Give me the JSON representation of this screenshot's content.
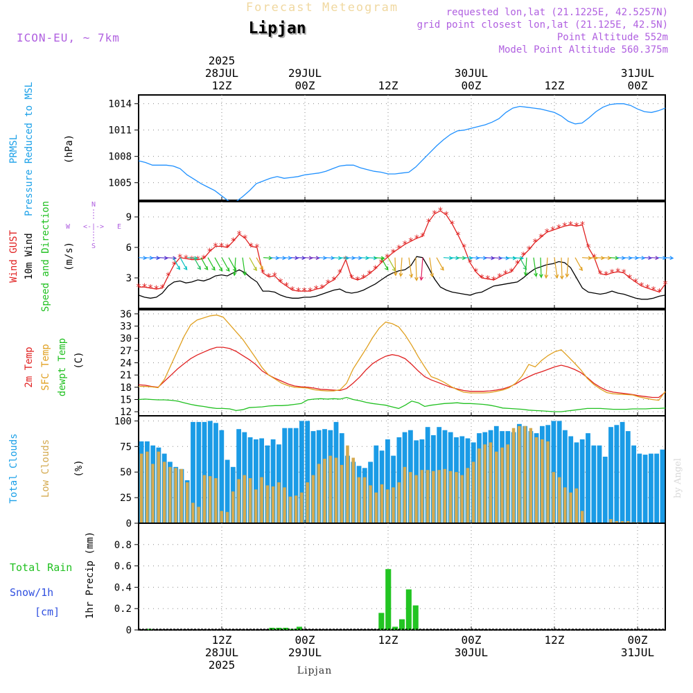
{
  "header": {
    "banner": "Forecast Meteogram",
    "location": "Lipjan",
    "model": "ICON-EU, ~ 7km",
    "requested": "requested lon,lat (21.1225E, 42.5257N)",
    "grid_point": "grid point closest lon,lat (21.125E, 42.5N)",
    "altitude": "Point Altitude 552m",
    "model_altitude": "Model Point Altitude 560.375m"
  },
  "time_axis": {
    "top_ticks": [
      {
        "hour": 12,
        "lines": [
          "2025",
          "28JUL",
          "12Z"
        ]
      },
      {
        "hour": 24,
        "lines": [
          "29JUL",
          "00Z"
        ]
      },
      {
        "hour": 36,
        "lines": [
          "12Z"
        ]
      },
      {
        "hour": 48,
        "lines": [
          "30JUL",
          "00Z"
        ]
      },
      {
        "hour": 60,
        "lines": [
          "12Z"
        ]
      },
      {
        "hour": 72,
        "lines": [
          "31JUL",
          "00Z"
        ]
      }
    ],
    "bottom_ticks": [
      {
        "hour": 12,
        "lines": [
          "12Z",
          "28JUL",
          "2025"
        ]
      },
      {
        "hour": 24,
        "lines": [
          "00Z",
          "29JUL"
        ]
      },
      {
        "hour": 36,
        "lines": [
          "12Z"
        ]
      },
      {
        "hour": 48,
        "lines": [
          "00Z",
          "30JUL"
        ]
      },
      {
        "hour": 60,
        "lines": [
          "12Z"
        ]
      },
      {
        "hour": 72,
        "lines": [
          "00Z",
          "31JUL"
        ]
      }
    ],
    "footer_label": "Lipjan",
    "range_hours": [
      0,
      76
    ]
  },
  "credit": "by Angel",
  "chart_data": [
    {
      "type": "line",
      "panel": "pressure",
      "ylabels": [
        "PRMSL",
        "Pressure Reduced to MSL"
      ],
      "unit": "(hPa)",
      "ylim": [
        1003,
        1015
      ],
      "yticks": [
        1005,
        1008,
        1011,
        1014
      ],
      "x_hours_start": 0,
      "x_step": 1,
      "series": [
        {
          "name": "PRMSL",
          "color": "#1e90ff",
          "values": [
            1007.5,
            1007.3,
            1007.0,
            1007.0,
            1007.0,
            1006.9,
            1006.6,
            1005.9,
            1005.4,
            1004.9,
            1004.5,
            1004.1,
            1003.5,
            1002.9,
            1002.8,
            1003.4,
            1004.1,
            1004.9,
            1005.2,
            1005.5,
            1005.7,
            1005.5,
            1005.6,
            1005.7,
            1005.9,
            1006.0,
            1006.1,
            1006.3,
            1006.6,
            1006.9,
            1007.0,
            1007.0,
            1006.7,
            1006.5,
            1006.3,
            1006.2,
            1006.0,
            1006.0,
            1006.1,
            1006.2,
            1006.8,
            1007.6,
            1008.4,
            1009.2,
            1009.9,
            1010.5,
            1010.9,
            1011.0,
            1011.2,
            1011.4,
            1011.6,
            1011.9,
            1012.3,
            1013.0,
            1013.5,
            1013.7,
            1013.6,
            1013.5,
            1013.4,
            1013.2,
            1013.0,
            1012.6,
            1012.0,
            1011.7,
            1011.8,
            1012.4,
            1013.1,
            1013.6,
            1013.9,
            1014.0,
            1014.0,
            1013.8,
            1013.4,
            1013.1,
            1013.0,
            1013.2,
            1013.5
          ]
        }
      ]
    },
    {
      "type": "line",
      "panel": "wind",
      "ylabels": [
        "Wind GUST",
        "10m Wind",
        "Speed and Direction"
      ],
      "unit": "(m/s)",
      "compass": {
        "n": "N",
        "s": "S",
        "w": "W",
        "e": "E",
        "arrows": "<-|->"
      },
      "ylim": [
        0,
        10.5
      ],
      "yticks": [
        3,
        6,
        9
      ],
      "x_hours_start": 0,
      "x_step": 1,
      "series": [
        {
          "name": "Wind GUST",
          "color": "#e02020",
          "marker": "*",
          "values": [
            2.1,
            2.1,
            2.0,
            1.9,
            2.0,
            3.2,
            4.3,
            5.0,
            4.9,
            4.8,
            4.8,
            4.9,
            5.6,
            6.1,
            6.1,
            6.0,
            6.6,
            7.3,
            6.9,
            6.1,
            6.0,
            3.5,
            3.1,
            3.2,
            2.6,
            2.2,
            1.8,
            1.7,
            1.7,
            1.7,
            1.9,
            2.0,
            2.5,
            2.8,
            3.5,
            4.8,
            3.0,
            2.8,
            3.0,
            3.4,
            3.9,
            4.5,
            5.0,
            5.5,
            5.9,
            6.3,
            6.6,
            6.9,
            7.1,
            8.5,
            9.3,
            9.6,
            9.2,
            8.3,
            7.2,
            6.0,
            4.5,
            3.6,
            3.0,
            2.9,
            2.8,
            3.1,
            3.4,
            3.6,
            4.4,
            5.2,
            5.8,
            6.5,
            7.0,
            7.5,
            7.7,
            7.9,
            8.1,
            8.2,
            8.1,
            8.2,
            6.0,
            5.0,
            3.4,
            3.3,
            3.5,
            3.6,
            3.5,
            3.0,
            2.6,
            2.2,
            2.0,
            1.8,
            1.6,
            2.4
          ]
        },
        {
          "name": "10m Wind",
          "color": "#000000",
          "values": [
            1.3,
            1.1,
            1.0,
            1.1,
            1.5,
            2.2,
            2.6,
            2.7,
            2.5,
            2.6,
            2.8,
            2.7,
            2.9,
            3.2,
            3.3,
            3.2,
            3.5,
            3.8,
            3.5,
            3.0,
            2.6,
            1.7,
            1.7,
            1.6,
            1.3,
            1.1,
            1.0,
            1.0,
            1.1,
            1.1,
            1.2,
            1.4,
            1.6,
            1.8,
            1.9,
            1.6,
            1.5,
            1.6,
            1.8,
            2.1,
            2.4,
            2.8,
            3.2,
            3.5,
            3.7,
            3.8,
            4.2,
            5.1,
            5.0,
            4.0,
            2.9,
            2.1,
            1.8,
            1.6,
            1.5,
            1.4,
            1.3,
            1.5,
            1.6,
            1.9,
            2.2,
            2.3,
            2.4,
            2.5,
            2.6,
            3.0,
            3.5,
            3.9,
            4.1,
            4.3,
            4.4,
            4.6,
            4.5,
            4.0,
            3.0,
            2.0,
            1.6,
            1.5,
            1.4,
            1.5,
            1.7,
            1.5,
            1.4,
            1.2,
            1.0,
            0.9,
            0.9,
            1.0,
            1.2,
            1.3
          ]
        },
        {
          "name": "Speed and Direction",
          "color": "#20c020",
          "arrow_colors": [
            "#1e90ff",
            "#1e90ff",
            "#3040e0",
            "#5030d0",
            "#7030c0",
            "#00c0c0",
            "#00c0c0",
            "#20c0a0",
            "#20c060",
            "#20c020",
            "#20c020",
            "#20c020",
            "#20c020",
            "#20c020",
            "#20c020",
            "#20c020",
            "#b0c020",
            "#e0a020",
            "#20c020",
            "#1e90ff",
            "#1e90ff",
            "#1e90ff",
            "#5030d0",
            "#5030d0",
            "#7030c0",
            "#7030c0",
            "#1e90ff",
            "#1e90ff",
            "#00c0c0",
            "#00c0c0",
            "#1e90ff",
            "#1e90ff",
            "#00c0c0",
            "#00c0c0",
            "#20c020",
            "#20c020",
            "#a0c020",
            "#e0a020",
            "#e0a020",
            "#e0a020",
            "#e0a020",
            "#e02060",
            "#e0a020",
            "#e0a020",
            "#00c0c0",
            "#00c0c0",
            "#20c060",
            "#00c0c0",
            "#1e90ff",
            "#1e90ff",
            "#5030d0",
            "#7030c0",
            "#1e90ff",
            "#00c0c0",
            "#00c0c0",
            "#20c060",
            "#20c020",
            "#20c020",
            "#20c020",
            "#e0a020",
            "#e0a020",
            "#e0a020",
            "#e0a020",
            "#e0a020",
            "#e0a020",
            "#e0a020",
            "#e0a020",
            "#e0a020",
            "#20c020",
            "#1e90ff",
            "#1e90ff",
            "#1e90ff",
            "#1e90ff",
            "#5030d0",
            "#7030c0",
            "#1e90ff",
            "#1e90ff"
          ]
        }
      ]
    },
    {
      "type": "line",
      "panel": "temperature",
      "ylabels": [
        "2m Temp",
        "SFC Temp",
        "dewpt Temp"
      ],
      "unit": "(C)",
      "ylim": [
        11,
        37
      ],
      "yticks": [
        12,
        15,
        18,
        21,
        24,
        27,
        30,
        33,
        36
      ],
      "x_hours_start": 0,
      "x_step": 1,
      "series": [
        {
          "name": "2m Temp",
          "color": "#e02020",
          "values": [
            18.6,
            18.5,
            18.2,
            18.0,
            19.5,
            21.0,
            22.5,
            23.8,
            25.0,
            25.9,
            26.6,
            27.3,
            27.8,
            27.8,
            27.5,
            26.8,
            25.8,
            24.8,
            23.6,
            22.0,
            21.0,
            20.2,
            19.5,
            18.8,
            18.3,
            18.1,
            18.0,
            17.8,
            17.5,
            17.4,
            17.3,
            17.2,
            17.7,
            19.0,
            20.5,
            22.3,
            23.8,
            24.8,
            25.6,
            26.0,
            25.7,
            25.0,
            23.6,
            22.0,
            20.6,
            19.8,
            19.2,
            18.6,
            18.0,
            17.6,
            17.2,
            17.0,
            17.0,
            17.0,
            17.1,
            17.3,
            17.6,
            18.1,
            18.8,
            19.8,
            20.6,
            21.3,
            21.8,
            22.4,
            23.0,
            23.4,
            23.0,
            22.4,
            21.6,
            20.4,
            19.0,
            18.0,
            17.2,
            16.8,
            16.6,
            16.4,
            16.2,
            15.9,
            15.7,
            15.5,
            15.5,
            16.8
          ]
        },
        {
          "name": "SFC Temp",
          "color": "#e0a020",
          "values": [
            18.2,
            18.2,
            18.1,
            17.9,
            20.0,
            23.5,
            27.0,
            30.5,
            33.3,
            34.5,
            35.0,
            35.5,
            35.7,
            35.2,
            33.4,
            31.6,
            29.8,
            27.5,
            25.2,
            22.8,
            21.0,
            20.0,
            19.0,
            18.4,
            18.0,
            17.9,
            17.8,
            17.4,
            17.2,
            17.1,
            17.1,
            17.4,
            19.0,
            22.5,
            25.0,
            27.5,
            30.2,
            32.5,
            34.0,
            33.6,
            32.8,
            30.8,
            28.3,
            25.5,
            23.0,
            20.6,
            20.0,
            19.2,
            18.2,
            17.4,
            16.8,
            16.6,
            16.6,
            16.6,
            16.7,
            17.0,
            17.3,
            17.9,
            19.0,
            20.8,
            23.6,
            23.0,
            24.6,
            25.8,
            26.7,
            27.2,
            25.6,
            24.0,
            22.3,
            20.2,
            18.7,
            17.6,
            16.7,
            16.4,
            16.3,
            16.2,
            16.1,
            15.6,
            15.3,
            15.0,
            14.8,
            17.0
          ]
        },
        {
          "name": "dewpt Temp",
          "color": "#20c020",
          "values": [
            15.0,
            15.1,
            15.0,
            14.9,
            14.9,
            14.8,
            14.6,
            14.2,
            13.8,
            13.5,
            13.3,
            13.0,
            12.8,
            12.8,
            12.7,
            12.3,
            12.5,
            13.0,
            13.1,
            13.2,
            13.4,
            13.5,
            13.5,
            13.6,
            13.8,
            14.0,
            14.9,
            15.1,
            15.2,
            15.1,
            15.2,
            15.1,
            15.5,
            15.0,
            14.7,
            14.3,
            14.0,
            13.8,
            13.6,
            13.2,
            12.8,
            13.6,
            14.6,
            14.2,
            13.3,
            13.6,
            13.8,
            14.0,
            14.1,
            14.2,
            14.0,
            14.0,
            13.9,
            13.8,
            13.6,
            13.3,
            12.9,
            12.8,
            12.7,
            12.6,
            12.4,
            12.3,
            12.2,
            12.1,
            12.0,
            12.0,
            12.2,
            12.4,
            12.6,
            12.8,
            12.8,
            12.8,
            12.7,
            12.6,
            12.6,
            12.6,
            12.7,
            12.7,
            12.7,
            12.8,
            12.8,
            12.9
          ]
        }
      ]
    },
    {
      "type": "bar",
      "panel": "clouds",
      "ylabels": [
        "Total Clouds",
        "Low Clouds"
      ],
      "unit": "(%)",
      "ylim": [
        0,
        105
      ],
      "yticks": [
        0,
        25,
        50,
        75,
        100
      ],
      "x_hours_start": 0,
      "x_step": 1,
      "series": [
        {
          "name": "Total Clouds",
          "color": "#1a9be6",
          "values": [
            80,
            80,
            76,
            74,
            68,
            60,
            55,
            53,
            42,
            99,
            99,
            99,
            100,
            98,
            91,
            62,
            55,
            92,
            89,
            84,
            82,
            83,
            76,
            82,
            77,
            93,
            93,
            93,
            100,
            100,
            90,
            91,
            92,
            91,
            99,
            88,
            66,
            60,
            56,
            54,
            60,
            76,
            71,
            82,
            66,
            84,
            89,
            91,
            81,
            82,
            94,
            86,
            94,
            91,
            89,
            84,
            85,
            83,
            79,
            88,
            89,
            91,
            95,
            90,
            90,
            89,
            97,
            95,
            90,
            88,
            95,
            96,
            100,
            100,
            91,
            85,
            79,
            82,
            88,
            76,
            76,
            65,
            94,
            96,
            99,
            90,
            76,
            68,
            67,
            68,
            68,
            72
          ]
        },
        {
          "name": "Low Clouds",
          "color": "#d4aa50",
          "values": [
            68,
            70,
            58,
            70,
            60,
            55,
            54,
            53,
            40,
            20,
            16,
            47,
            46,
            44,
            12,
            11,
            31,
            43,
            47,
            44,
            33,
            45,
            37,
            36,
            40,
            35,
            26,
            27,
            30,
            40,
            47,
            58,
            63,
            66,
            64,
            57,
            76,
            64,
            45,
            45,
            37,
            30,
            38,
            33,
            35,
            40,
            55,
            50,
            47,
            52,
            52,
            51,
            52,
            53,
            51,
            50,
            47,
            54,
            60,
            73,
            77,
            79,
            70,
            74,
            77,
            93,
            95,
            95,
            93,
            84,
            82,
            80,
            50,
            45,
            35,
            30,
            34,
            12,
            0,
            0,
            0,
            0,
            4,
            2,
            2,
            2,
            1,
            1,
            0,
            0,
            0,
            0
          ]
        }
      ]
    },
    {
      "type": "bar",
      "panel": "precip",
      "ylabels": [
        "1hr Precip (mm)"
      ],
      "legend": [
        "Total Rain",
        "Snow/1h",
        "[cm]"
      ],
      "ylim": [
        0,
        1.0
      ],
      "yticks": [
        0,
        0.2,
        0.4,
        0.6,
        0.8
      ],
      "x_hours_start": 0,
      "x_step": 1,
      "series": [
        {
          "name": "Total Rain",
          "color": "#22c422",
          "values": [
            0,
            0.01,
            0,
            0,
            0,
            0,
            0,
            0,
            0,
            0,
            0,
            0,
            0,
            0,
            0,
            0,
            0,
            0,
            0,
            0.02,
            0.02,
            0.02,
            0.01,
            0.03,
            0,
            0,
            0,
            0,
            0,
            0,
            0,
            0,
            0,
            0,
            0,
            0.16,
            0.57,
            0.03,
            0.1,
            0.38,
            0.23,
            0,
            0,
            0,
            0,
            0,
            0,
            0,
            0,
            0,
            0,
            0,
            0,
            0,
            0,
            0,
            0,
            0,
            0,
            0,
            0,
            0,
            0,
            0,
            0,
            0,
            0,
            0,
            0,
            0,
            0,
            0,
            0,
            0,
            0,
            0,
            0
          ]
        }
      ]
    }
  ]
}
